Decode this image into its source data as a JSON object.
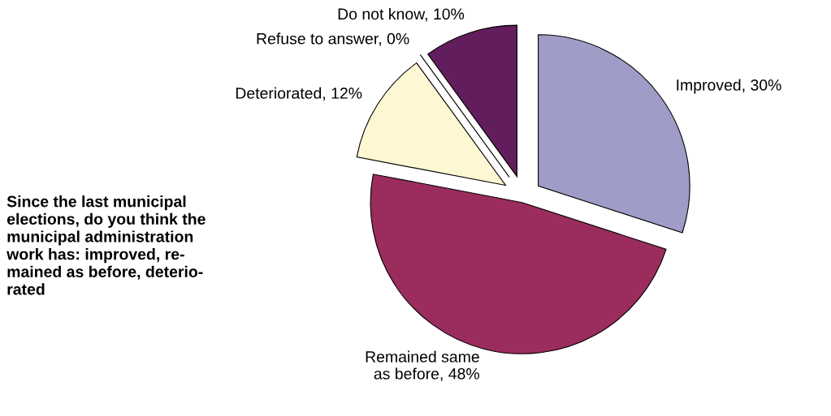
{
  "chart_data": {
    "type": "pie",
    "title": "Since the last municipal\nelections, do you think the\nmunicipal administration\nwork has: improved, re-\nmained as before, deterio-\nrated",
    "categories": [
      "Improved, 30%",
      "Remained same\nas before, 48%",
      "Deteriorated, 12%",
      "Refuse to answer, 0%",
      "Do not know, 10%"
    ],
    "values": [
      30,
      48,
      12,
      0,
      10
    ],
    "colors": [
      "#a09cc8",
      "#9b2c5e",
      "#fdf7d3",
      "#d8eef2",
      "#621e5c"
    ],
    "legend": false
  }
}
